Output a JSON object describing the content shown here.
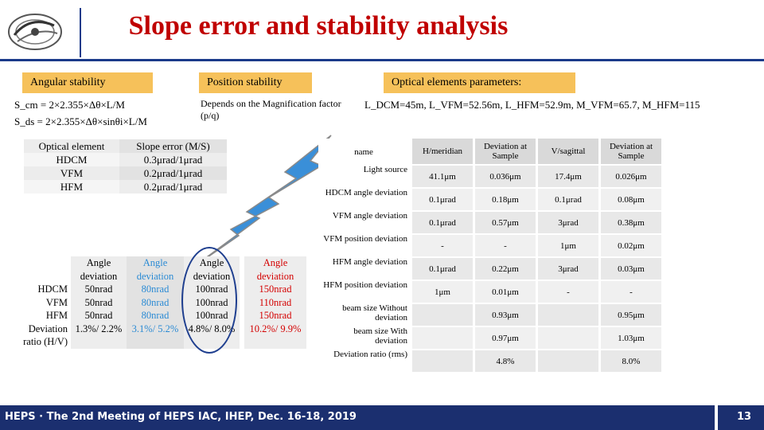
{
  "header": {
    "title": "Slope error and stability analysis"
  },
  "labels": {
    "angular": "Angular stability",
    "position": "Position stability",
    "optical": "Optical elements parameters:"
  },
  "formulas": {
    "s_cm": "S_cm = 2×2.355×Δθ×L/M",
    "s_ds": "S_ds = 2×2.355×Δθ×sinθi×L/M",
    "position_note": "Depends on the Magnification factor (p/q)",
    "optical_params": "L_DCM=45m, L_VFM=52.56m, L_HFM=52.9m, M_VFM=65.7, M_HFM=115"
  },
  "slope_table": {
    "headers": [
      "Optical element",
      "Slope error (M/S)"
    ],
    "rows": [
      [
        "HDCM",
        "0.3μrad/1μrad"
      ],
      [
        "VFM",
        "0.2μrad/1μrad"
      ],
      [
        "HFM",
        "0.2μrad/1μrad"
      ]
    ]
  },
  "deviation_table": {
    "row_labels": [
      "",
      "HDCM",
      "VFM",
      "HFM",
      "Deviation ratio (H/V)"
    ],
    "columns": [
      {
        "header": "Angle deviation",
        "values": [
          "50nrad",
          "50nrad",
          "50nrad",
          "1.3%/ 2.2%"
        ],
        "color": "#000000"
      },
      {
        "header": "Angle deviation",
        "values": [
          "80nrad",
          "80nrad",
          "80nrad",
          "3.1%/ 5.2%"
        ],
        "color": "#2a8ad4"
      },
      {
        "header": "Angle deviation",
        "values": [
          "100nrad",
          "100nrad",
          "100nrad",
          "4.8%/ 8.0%"
        ],
        "color": "#000000"
      },
      {
        "header": "Angle deviation",
        "values": [
          "150nrad",
          "110nrad",
          "150nrad",
          "10.2%/ 9.9%"
        ],
        "color": "#d40000"
      }
    ]
  },
  "right_table": {
    "headers": [
      "name",
      "H/meridian",
      "Deviation at Sample",
      "V/sagittal",
      "Deviation at Sample"
    ],
    "rows": [
      {
        "name": "Light source",
        "cells": [
          "41.1μm",
          "0.036μm",
          "17.4μm",
          "0.026μm"
        ]
      },
      {
        "name": "HDCM angle deviation",
        "cells": [
          "0.1μrad",
          "0.18μm",
          "0.1μrad",
          "0.08μm"
        ]
      },
      {
        "name": "VFM angle deviation",
        "cells": [
          "0.1μrad",
          "0.57μm",
          "3μrad",
          "0.38μm"
        ]
      },
      {
        "name": "VFM position deviation",
        "cells": [
          "-",
          "-",
          "1μm",
          "0.02μm"
        ]
      },
      {
        "name": "HFM angle deviation",
        "cells": [
          "0.1μrad",
          "0.22μm",
          "3μrad",
          "0.03μm"
        ]
      },
      {
        "name": "HFM position deviation",
        "cells": [
          "1μm",
          "0.01μm",
          "-",
          "-"
        ]
      },
      {
        "name": "beam size Without deviation",
        "cells": [
          "",
          "0.93μm",
          "",
          "0.95μm"
        ]
      },
      {
        "name": "beam size With deviation",
        "cells": [
          "",
          "0.97μm",
          "",
          "1.03μm"
        ]
      },
      {
        "name": "Deviation ratio (rms)",
        "cells": [
          "",
          "4.8%",
          "",
          "8.0%"
        ]
      }
    ]
  },
  "footer": {
    "text": "HEPS · The 2nd Meeting of HEPS IAC, IHEP, Dec. 16-18, 2019",
    "page": "13"
  },
  "colors": {
    "title": "#c00000",
    "label_box": "#f6c15a",
    "footer_bg": "#1b2f6f",
    "lightning": "#3a8fd8"
  }
}
